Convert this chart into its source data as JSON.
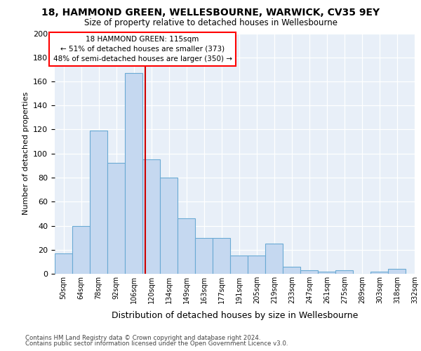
{
  "title": "18, HAMMOND GREEN, WELLESBOURNE, WARWICK, CV35 9EY",
  "subtitle": "Size of property relative to detached houses in Wellesbourne",
  "xlabel": "Distribution of detached houses by size in Wellesbourne",
  "ylabel": "Number of detached properties",
  "footer1": "Contains HM Land Registry data © Crown copyright and database right 2024.",
  "footer2": "Contains public sector information licensed under the Open Government Licence v3.0.",
  "annotation_title": "18 HAMMOND GREEN: 115sqm",
  "annotation_line1": "← 51% of detached houses are smaller (373)",
  "annotation_line2": "48% of semi-detached houses are larger (350) →",
  "bar_values": [
    17,
    40,
    119,
    92,
    167,
    95,
    80,
    46,
    30,
    30,
    15,
    15,
    25,
    6,
    3,
    2,
    3,
    0,
    2,
    4
  ],
  "bin_labels": [
    "50sqm",
    "64sqm",
    "78sqm",
    "92sqm",
    "106sqm",
    "120sqm",
    "134sqm",
    "149sqm",
    "163sqm",
    "177sqm",
    "191sqm",
    "205sqm",
    "219sqm",
    "233sqm",
    "247sqm",
    "261sqm",
    "275sqm",
    "289sqm",
    "303sqm",
    "318sqm",
    "332sqm"
  ],
  "bar_color": "#c5d8f0",
  "bar_edge_color": "#6aaad4",
  "vline_color": "#cc0000",
  "bg_color": "#e8eff8",
  "ylim": [
    0,
    200
  ],
  "yticks": [
    0,
    20,
    40,
    60,
    80,
    100,
    120,
    140,
    160,
    180,
    200
  ],
  "title_fontsize": 10,
  "subtitle_fontsize": 8.5,
  "ylabel_fontsize": 8,
  "xlabel_fontsize": 9,
  "ytick_fontsize": 8,
  "xtick_fontsize": 7,
  "annotation_fontsize": 7.5,
  "footer_fontsize": 6.2
}
